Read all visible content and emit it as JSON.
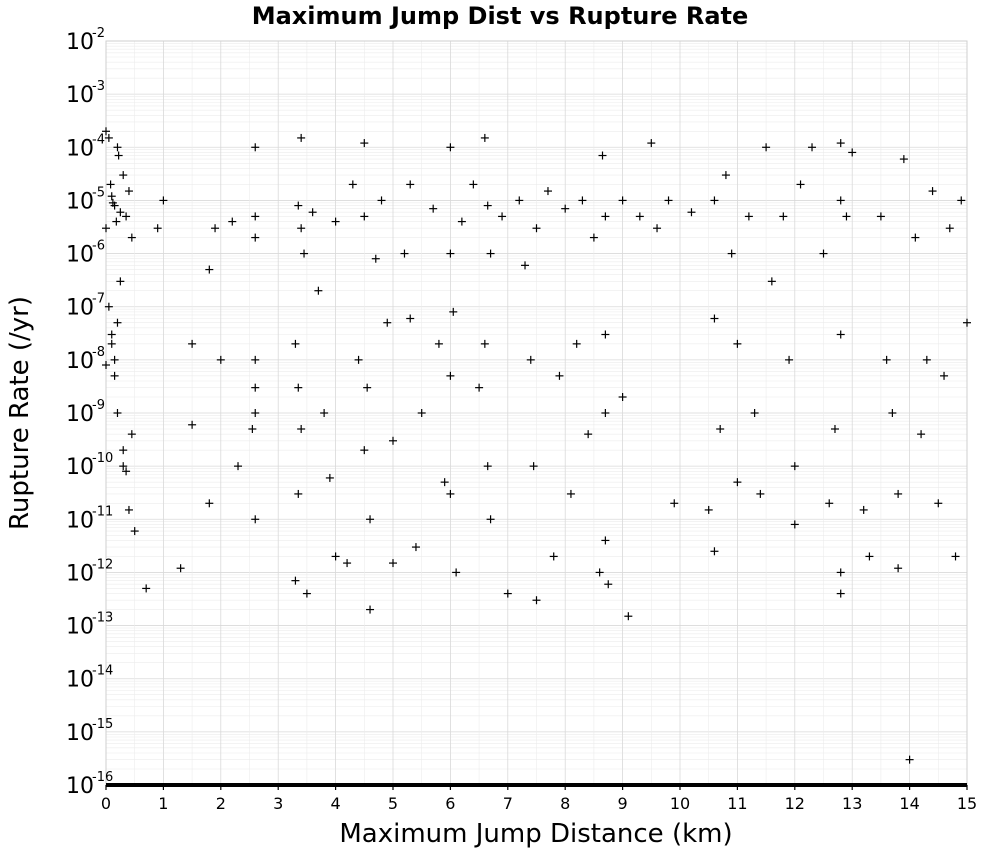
{
  "chart_data": {
    "type": "scatter",
    "title": "Maximum Jump Dist vs Rupture Rate",
    "xlabel": "Maximum Jump Distance (km)",
    "ylabel": "Rupture Rate (/yr)",
    "xlim": [
      0,
      15
    ],
    "ylim": [
      1e-16,
      0.01
    ],
    "yscale": "log",
    "grid": true,
    "marker": "plus",
    "x_ticks": [
      0,
      1,
      2,
      3,
      4,
      5,
      6,
      7,
      8,
      9,
      10,
      11,
      12,
      13,
      14,
      15
    ],
    "x_tick_labels": [
      "0",
      "1",
      "2",
      "3",
      "4",
      "5",
      "6",
      "7",
      "8",
      "9",
      "10",
      "11",
      "12",
      "13",
      "14",
      "15"
    ],
    "y_ticks": [
      {
        "base": "10",
        "exp": "-2",
        "value": 0.01
      },
      {
        "base": "10",
        "exp": "-3",
        "value": 0.001
      },
      {
        "base": "10",
        "exp": "-4",
        "value": 0.0001
      },
      {
        "base": "10",
        "exp": "-5",
        "value": 1e-05
      },
      {
        "base": "10",
        "exp": "-6",
        "value": 1e-06
      },
      {
        "base": "10",
        "exp": "-7",
        "value": 1e-07
      },
      {
        "base": "10",
        "exp": "-8",
        "value": 1e-08
      },
      {
        "base": "10",
        "exp": "-9",
        "value": 1e-09
      },
      {
        "base": "10",
        "exp": "-10",
        "value": 1e-10
      },
      {
        "base": "10",
        "exp": "-11",
        "value": 1e-11
      },
      {
        "base": "10",
        "exp": "-12",
        "value": 1e-12
      },
      {
        "base": "10",
        "exp": "-13",
        "value": 1e-13
      },
      {
        "base": "10",
        "exp": "-14",
        "value": 1e-14
      },
      {
        "base": "10",
        "exp": "-15",
        "value": 1e-15
      },
      {
        "base": "10",
        "exp": "-16",
        "value": 1e-16
      }
    ],
    "points": [
      [
        0.0,
        0.0002
      ],
      [
        0.05,
        0.00015
      ],
      [
        0.1,
        1.2e-05
      ],
      [
        0.15,
        8e-06
      ],
      [
        0.2,
        0.0001
      ],
      [
        0.25,
        6e-06
      ],
      [
        0.3,
        3e-05
      ],
      [
        0.35,
        5e-06
      ],
      [
        0.4,
        1.5e-05
      ],
      [
        0.45,
        2e-06
      ],
      [
        0.0,
        3e-06
      ],
      [
        0.08,
        2e-05
      ],
      [
        0.12,
        9e-06
      ],
      [
        0.18,
        4e-06
      ],
      [
        0.22,
        7e-05
      ],
      [
        0.05,
        1e-07
      ],
      [
        0.1,
        3e-08
      ],
      [
        0.15,
        5e-09
      ],
      [
        0.2,
        1e-09
      ],
      [
        0.3,
        2e-10
      ],
      [
        0.35,
        8e-11
      ],
      [
        0.4,
        1.5e-11
      ],
      [
        0.45,
        4e-10
      ],
      [
        0.0,
        8e-09
      ],
      [
        0.1,
        2e-08
      ],
      [
        0.5,
        6e-12
      ],
      [
        0.3,
        1e-10
      ],
      [
        0.2,
        5e-08
      ],
      [
        0.25,
        3e-07
      ],
      [
        0.15,
        1e-08
      ],
      [
        0.7,
        5e-13
      ],
      [
        0.9,
        3e-06
      ],
      [
        1.0,
        1e-05
      ],
      [
        1.3,
        1.2e-12
      ],
      [
        1.5,
        2e-08
      ],
      [
        1.5,
        6e-10
      ],
      [
        1.8,
        5e-07
      ],
      [
        1.8,
        2e-11
      ],
      [
        1.9,
        3e-06
      ],
      [
        2.0,
        1e-08
      ],
      [
        2.2,
        4e-06
      ],
      [
        2.3,
        1e-10
      ],
      [
        2.6,
        0.0001
      ],
      [
        2.6,
        5e-06
      ],
      [
        2.6,
        2e-06
      ],
      [
        2.6,
        1e-08
      ],
      [
        2.6,
        3e-09
      ],
      [
        2.6,
        1e-09
      ],
      [
        2.6,
        1e-11
      ],
      [
        2.55,
        5e-10
      ],
      [
        3.3,
        7e-13
      ],
      [
        3.4,
        0.00015
      ],
      [
        3.35,
        8e-06
      ],
      [
        3.4,
        3e-06
      ],
      [
        3.45,
        1e-06
      ],
      [
        3.3,
        2e-08
      ],
      [
        3.35,
        3e-09
      ],
      [
        3.4,
        5e-10
      ],
      [
        3.35,
        3e-11
      ],
      [
        3.5,
        4e-13
      ],
      [
        3.6,
        6e-06
      ],
      [
        3.7,
        2e-07
      ],
      [
        3.8,
        1e-09
      ],
      [
        3.9,
        6e-11
      ],
      [
        4.0,
        4e-06
      ],
      [
        4.0,
        2e-12
      ],
      [
        4.2,
        1.5e-12
      ],
      [
        4.3,
        2e-05
      ],
      [
        4.4,
        1e-08
      ],
      [
        4.5,
        0.00012
      ],
      [
        4.5,
        5e-06
      ],
      [
        4.55,
        3e-09
      ],
      [
        4.5,
        2e-10
      ],
      [
        4.6,
        1e-11
      ],
      [
        4.6,
        2e-13
      ],
      [
        4.7,
        8e-07
      ],
      [
        4.8,
        1e-05
      ],
      [
        4.9,
        5e-08
      ],
      [
        5.0,
        3e-10
      ],
      [
        5.0,
        1.5e-12
      ],
      [
        5.2,
        1e-06
      ],
      [
        5.3,
        2e-05
      ],
      [
        5.3,
        6e-08
      ],
      [
        5.4,
        3e-12
      ],
      [
        5.5,
        1e-09
      ],
      [
        5.7,
        7e-06
      ],
      [
        5.8,
        2e-08
      ],
      [
        5.9,
        5e-11
      ],
      [
        6.0,
        0.0001
      ],
      [
        6.0,
        1e-06
      ],
      [
        6.05,
        8e-08
      ],
      [
        6.0,
        5e-09
      ],
      [
        6.0,
        3e-11
      ],
      [
        6.1,
        1e-12
      ],
      [
        6.2,
        4e-06
      ],
      [
        6.4,
        2e-05
      ],
      [
        6.5,
        3e-09
      ],
      [
        6.6,
        0.00015
      ],
      [
        6.65,
        8e-06
      ],
      [
        6.7,
        1e-06
      ],
      [
        6.6,
        2e-08
      ],
      [
        6.65,
        1e-10
      ],
      [
        6.7,
        1e-11
      ],
      [
        6.9,
        5e-06
      ],
      [
        7.0,
        4e-13
      ],
      [
        7.2,
        1e-05
      ],
      [
        7.3,
        6e-07
      ],
      [
        7.4,
        1e-08
      ],
      [
        7.45,
        1e-10
      ],
      [
        7.5,
        3e-13
      ],
      [
        7.5,
        3e-06
      ],
      [
        7.7,
        1.5e-05
      ],
      [
        7.8,
        2e-12
      ],
      [
        7.9,
        5e-09
      ],
      [
        8.0,
        7e-06
      ],
      [
        8.1,
        3e-11
      ],
      [
        8.2,
        2e-08
      ],
      [
        8.3,
        1e-05
      ],
      [
        8.4,
        4e-10
      ],
      [
        8.5,
        2e-06
      ],
      [
        8.6,
        1e-12
      ],
      [
        8.65,
        7e-05
      ],
      [
        8.7,
        5e-06
      ],
      [
        8.7,
        3e-08
      ],
      [
        8.7,
        1e-09
      ],
      [
        8.7,
        4e-12
      ],
      [
        8.75,
        6e-13
      ],
      [
        9.0,
        1e-05
      ],
      [
        9.0,
        2e-09
      ],
      [
        9.1,
        1.5e-13
      ],
      [
        9.3,
        5e-06
      ],
      [
        9.5,
        0.00012
      ],
      [
        9.6,
        3e-06
      ],
      [
        9.8,
        1e-05
      ],
      [
        9.9,
        2e-11
      ],
      [
        10.2,
        6e-06
      ],
      [
        10.5,
        1.5e-11
      ],
      [
        10.6,
        1e-05
      ],
      [
        10.6,
        6e-08
      ],
      [
        10.6,
        2.5e-12
      ],
      [
        10.7,
        5e-10
      ],
      [
        10.8,
        3e-05
      ],
      [
        10.9,
        1e-06
      ],
      [
        11.0,
        5e-11
      ],
      [
        11.0,
        2e-08
      ],
      [
        11.2,
        5e-06
      ],
      [
        11.3,
        1e-09
      ],
      [
        11.4,
        3e-11
      ],
      [
        11.5,
        0.0001
      ],
      [
        11.6,
        3e-07
      ],
      [
        11.8,
        5e-06
      ],
      [
        11.9,
        1e-08
      ],
      [
        12.0,
        1e-10
      ],
      [
        12.0,
        8e-12
      ],
      [
        12.1,
        2e-05
      ],
      [
        12.3,
        0.0001
      ],
      [
        12.5,
        1e-06
      ],
      [
        12.6,
        2e-11
      ],
      [
        12.7,
        5e-10
      ],
      [
        12.8,
        0.00012
      ],
      [
        12.8,
        1e-05
      ],
      [
        12.8,
        3e-08
      ],
      [
        12.8,
        1e-12
      ],
      [
        12.8,
        4e-13
      ],
      [
        12.9,
        5e-06
      ],
      [
        13.0,
        8e-05
      ],
      [
        13.2,
        1.5e-11
      ],
      [
        13.3,
        2e-12
      ],
      [
        13.5,
        5e-06
      ],
      [
        13.6,
        1e-08
      ],
      [
        13.7,
        1e-09
      ],
      [
        13.8,
        3e-11
      ],
      [
        13.8,
        1.2e-12
      ],
      [
        13.9,
        6e-05
      ],
      [
        14.0,
        3e-16
      ],
      [
        14.1,
        2e-06
      ],
      [
        14.2,
        4e-10
      ],
      [
        14.3,
        1e-08
      ],
      [
        14.4,
        1.5e-05
      ],
      [
        14.5,
        2e-11
      ],
      [
        14.6,
        5e-09
      ],
      [
        14.7,
        3e-06
      ],
      [
        14.8,
        2e-12
      ],
      [
        14.9,
        1e-05
      ],
      [
        15.0,
        5e-08
      ]
    ],
    "floor_value": 1e-16
  }
}
